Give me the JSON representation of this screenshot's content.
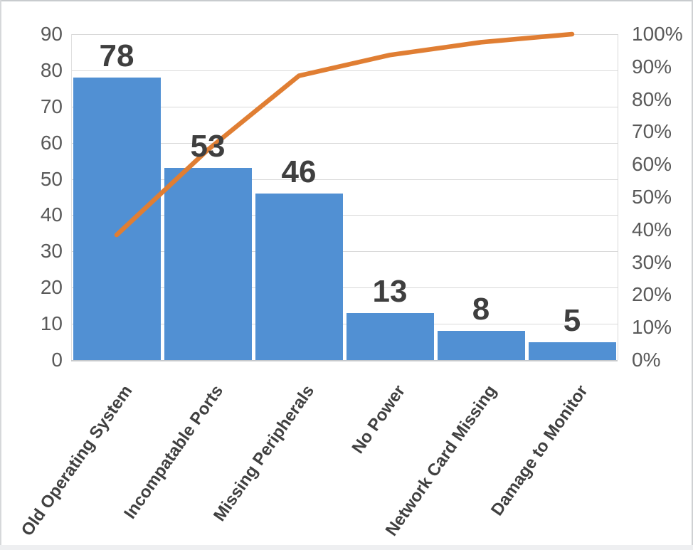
{
  "chart_data": {
    "type": "bar",
    "subtype": "pareto-combo-bar-line",
    "title": "",
    "xlabel": "",
    "ylabel": "",
    "legend": "none",
    "grid": true,
    "categories": [
      "Old Operating System",
      "Incompatable Ports",
      "Missing Peripherals",
      "No Power",
      "Network Card Missing",
      "Damage to Monitor"
    ],
    "series": [
      {
        "name": "frequency-bars",
        "type": "bar",
        "values": [
          78,
          53,
          46,
          13,
          8,
          5
        ]
      },
      {
        "name": "cumulative-percent-line",
        "type": "line",
        "values": [
          38.4,
          64.5,
          87.2,
          93.6,
          97.5,
          100
        ]
      }
    ],
    "bar_value_labels": [
      "78",
      "53",
      "46",
      "13",
      "8",
      "5"
    ],
    "primary_y_axis": {
      "min": 0,
      "max": 90,
      "step": 10,
      "tick_labels": [
        "0",
        "10",
        "20",
        "30",
        "40",
        "50",
        "60",
        "70",
        "80",
        "90"
      ]
    },
    "secondary_y_axis": {
      "min": 0,
      "max": 100,
      "step": 10,
      "tick_labels": [
        "0%",
        "10%",
        "20%",
        "30%",
        "40%",
        "50%",
        "60%",
        "70%",
        "80%",
        "90%",
        "100%"
      ]
    },
    "colors": {
      "bar": "#5190d3",
      "line": "#e07e33",
      "bar_value_label": "#3f3f3f",
      "tick_label": "#595959",
      "category_label": "#404040",
      "gridline": "#d9d9d9",
      "axis_line": "#c6c9cc"
    }
  }
}
